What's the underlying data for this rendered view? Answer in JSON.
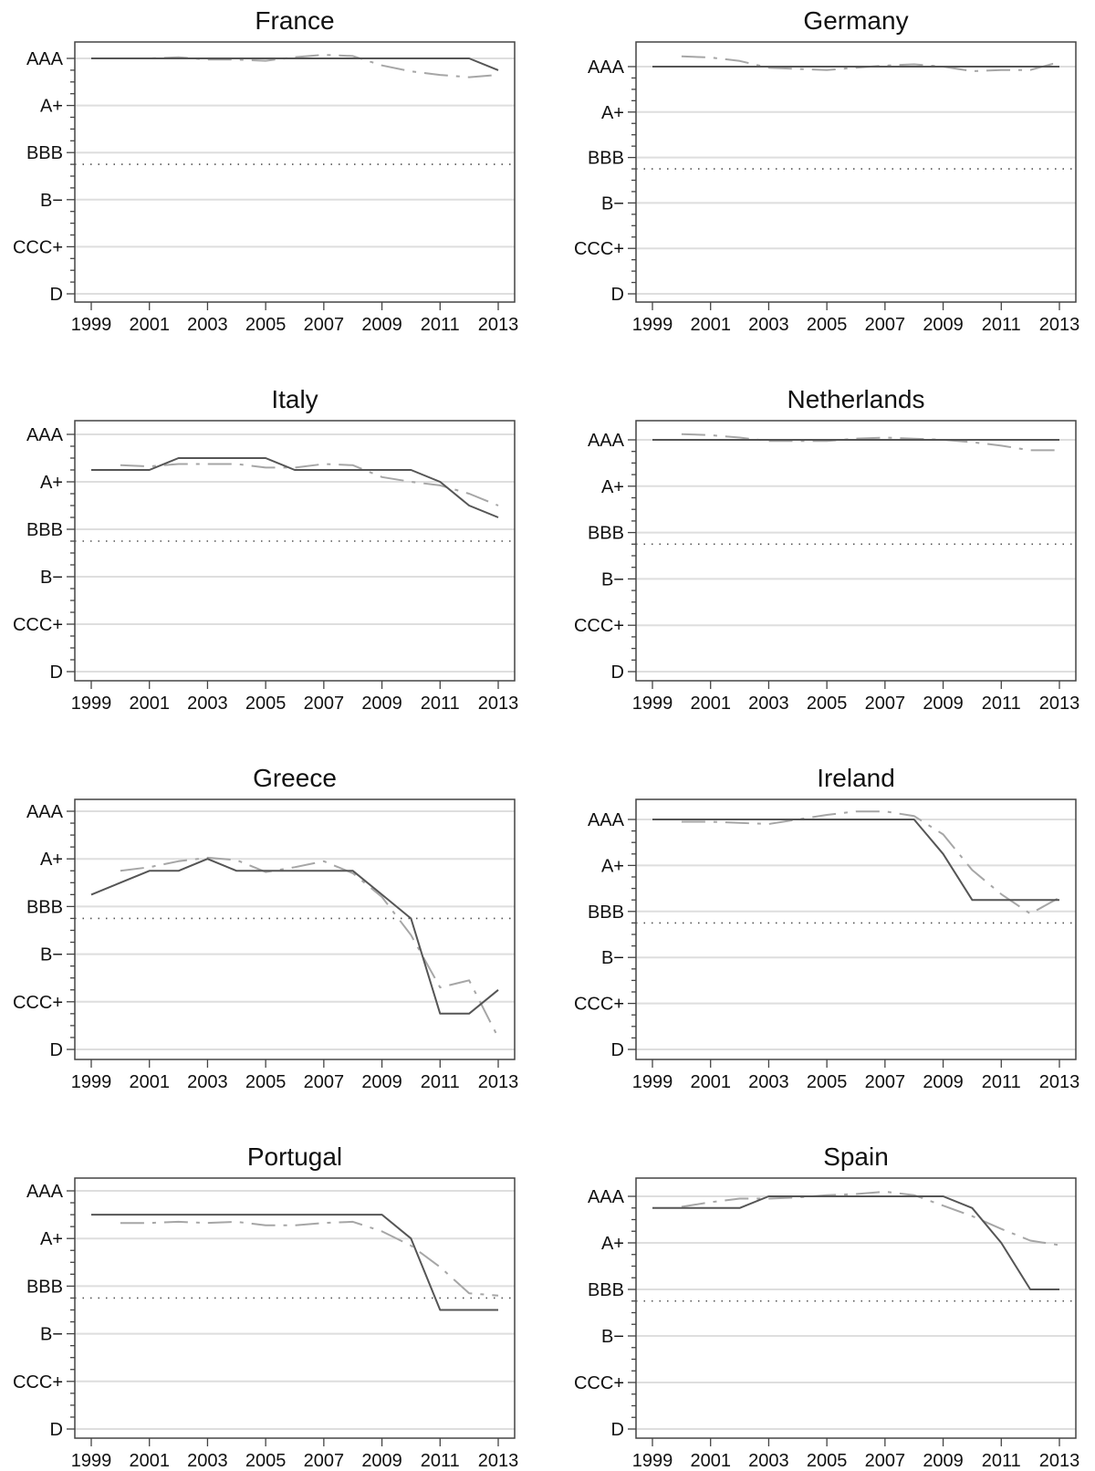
{
  "y_ticks": [
    "AAA",
    "A+",
    "BBB",
    "B−",
    "CCC+",
    "D"
  ],
  "y_tick_values": [
    20,
    16,
    12,
    8,
    4,
    0
  ],
  "x_ticks": [
    "1999",
    "2001",
    "2003",
    "2005",
    "2007",
    "2009",
    "2011",
    "2013"
  ],
  "colors": {
    "actual_line": "#555555",
    "predicted_line": "#a6a6a6",
    "threshold_line": "#555555",
    "gridline": "#dedede",
    "frame": "#444444"
  },
  "chart_data": [
    {
      "type": "line",
      "title": "France",
      "xlim": [
        1999,
        2013
      ],
      "ylim": [
        0,
        20
      ],
      "threshold": 11,
      "x": [
        1999,
        2000,
        2001,
        2002,
        2003,
        2004,
        2005,
        2006,
        2007,
        2008,
        2009,
        2010,
        2011,
        2012,
        2013
      ],
      "series": [
        {
          "values": [
            20,
            20,
            20,
            20,
            20,
            20,
            20,
            20,
            20,
            20,
            20,
            20,
            20,
            20,
            19
          ]
        },
        {
          "values": [
            null,
            20,
            20,
            20.1,
            19.9,
            19.9,
            19.8,
            20.1,
            20.3,
            20.2,
            19.4,
            18.9,
            18.6,
            18.4,
            18.6
          ]
        }
      ]
    },
    {
      "type": "line",
      "title": "Germany",
      "xlim": [
        1999,
        2013
      ],
      "ylim": [
        0,
        20
      ],
      "threshold": 11,
      "x": [
        1999,
        2000,
        2001,
        2002,
        2003,
        2004,
        2005,
        2006,
        2007,
        2008,
        2009,
        2010,
        2011,
        2012,
        2013
      ],
      "series": [
        {
          "values": [
            20,
            20,
            20,
            20,
            20,
            20,
            20,
            20,
            20,
            20,
            20,
            20,
            20,
            20,
            20
          ]
        },
        {
          "values": [
            null,
            20.9,
            20.8,
            20.5,
            19.9,
            19.8,
            19.7,
            19.9,
            20.1,
            20.2,
            20,
            19.6,
            19.7,
            19.7,
            20.4
          ]
        }
      ]
    },
    {
      "type": "line",
      "title": "Italy",
      "xlim": [
        1999,
        2013
      ],
      "ylim": [
        0,
        20
      ],
      "threshold": 11,
      "x": [
        1999,
        2000,
        2001,
        2002,
        2003,
        2004,
        2005,
        2006,
        2007,
        2008,
        2009,
        2010,
        2011,
        2012,
        2013
      ],
      "series": [
        {
          "values": [
            17,
            17,
            17,
            18,
            18,
            18,
            18,
            17,
            17,
            17,
            17,
            17,
            16,
            14,
            13
          ]
        },
        {
          "values": [
            null,
            17.4,
            17.3,
            17.5,
            17.5,
            17.5,
            17.2,
            17.2,
            17.5,
            17.4,
            16.4,
            16,
            15.7,
            15,
            14
          ]
        }
      ]
    },
    {
      "type": "line",
      "title": "Netherlands",
      "xlim": [
        1999,
        2013
      ],
      "ylim": [
        0,
        20
      ],
      "threshold": 11,
      "x": [
        1999,
        2000,
        2001,
        2002,
        2003,
        2004,
        2005,
        2006,
        2007,
        2008,
        2009,
        2010,
        2011,
        2012,
        2013
      ],
      "series": [
        {
          "values": [
            20,
            20,
            20,
            20,
            20,
            20,
            20,
            20,
            20,
            20,
            20,
            20,
            20,
            20,
            20
          ]
        },
        {
          "values": [
            null,
            20.5,
            20.4,
            20.2,
            19.9,
            19.9,
            19.9,
            20.1,
            20.2,
            20.1,
            20,
            19.8,
            19.5,
            19.1,
            19.1
          ]
        }
      ]
    },
    {
      "type": "line",
      "title": "Greece",
      "xlim": [
        1999,
        2013
      ],
      "ylim": [
        0,
        20
      ],
      "threshold": 11,
      "x": [
        1999,
        2000,
        2001,
        2002,
        2003,
        2004,
        2005,
        2006,
        2007,
        2008,
        2009,
        2010,
        2011,
        2012,
        2013
      ],
      "series": [
        {
          "values": [
            13,
            14,
            15,
            15,
            16,
            15,
            15,
            15,
            15,
            15,
            13,
            11,
            3,
            3,
            5
          ]
        },
        {
          "values": [
            null,
            15,
            15.3,
            15.8,
            16.1,
            15.9,
            14.9,
            15.3,
            15.8,
            14.8,
            12.8,
            9.6,
            5.2,
            5.8,
            1
          ]
        }
      ]
    },
    {
      "type": "line",
      "title": "Ireland",
      "xlim": [
        1999,
        2013
      ],
      "ylim": [
        0,
        20
      ],
      "threshold": 11,
      "x": [
        1999,
        2000,
        2001,
        2002,
        2003,
        2004,
        2005,
        2006,
        2007,
        2008,
        2009,
        2010,
        2011,
        2012,
        2013
      ],
      "series": [
        {
          "values": [
            20,
            20,
            20,
            20,
            20,
            20,
            20,
            20,
            20,
            20,
            17,
            13,
            13,
            13,
            13
          ]
        },
        {
          "values": [
            null,
            19.8,
            19.8,
            19.7,
            19.6,
            20,
            20.4,
            20.7,
            20.7,
            20.3,
            18.7,
            15.6,
            13.5,
            11.8,
            13.2
          ]
        }
      ]
    },
    {
      "type": "line",
      "title": "Portugal",
      "xlim": [
        1999,
        2013
      ],
      "ylim": [
        0,
        20
      ],
      "threshold": 11,
      "x": [
        1999,
        2000,
        2001,
        2002,
        2003,
        2004,
        2005,
        2006,
        2007,
        2008,
        2009,
        2010,
        2011,
        2012,
        2013
      ],
      "series": [
        {
          "values": [
            18,
            18,
            18,
            18,
            18,
            18,
            18,
            18,
            18,
            18,
            18,
            16,
            10,
            10,
            10
          ]
        },
        {
          "values": [
            null,
            17.3,
            17.3,
            17.4,
            17.3,
            17.4,
            17.1,
            17.1,
            17.3,
            17.4,
            16.6,
            15.4,
            13.6,
            11.4,
            11.2
          ]
        }
      ]
    },
    {
      "type": "line",
      "title": "Spain",
      "xlim": [
        1999,
        2013
      ],
      "ylim": [
        0,
        20
      ],
      "threshold": 11,
      "x": [
        1999,
        2000,
        2001,
        2002,
        2003,
        2004,
        2005,
        2006,
        2007,
        2008,
        2009,
        2010,
        2011,
        2012,
        2013
      ],
      "series": [
        {
          "values": [
            19,
            19,
            19,
            19,
            20,
            20,
            20,
            20,
            20,
            20,
            20,
            19,
            16,
            12,
            12
          ]
        },
        {
          "values": [
            null,
            19.1,
            19.5,
            19.8,
            19.8,
            19.9,
            20.1,
            20.2,
            20.4,
            20.1,
            19.2,
            18.3,
            17.2,
            16.2,
            15.8
          ]
        }
      ]
    }
  ]
}
